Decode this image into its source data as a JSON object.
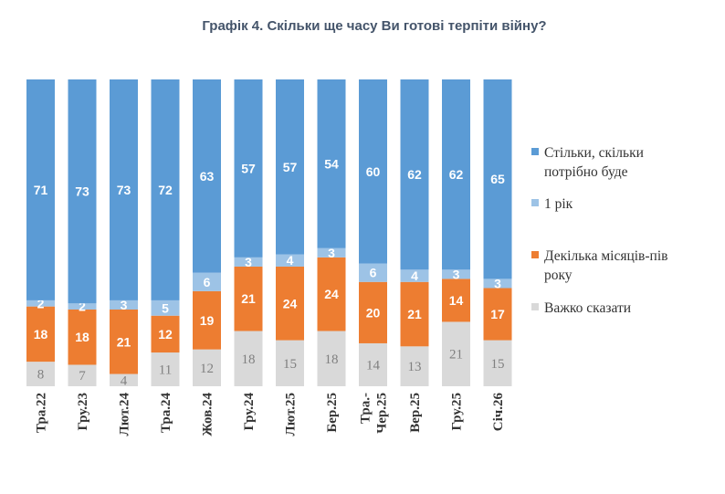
{
  "chart_data": {
    "type": "bar",
    "stacked": true,
    "title": "Графік 4. Скільки ще часу Ви готові терпіти війну?",
    "categories": [
      "Тра.22",
      "Гру.23",
      "Лют.24",
      "Тра.24",
      "Жов.24",
      "Гру.24",
      "Лют.25",
      "Бер.25",
      "Тра.-Чер.25",
      "Вер.25",
      "Гру.25",
      "Січ.26"
    ],
    "series": [
      {
        "name": "Важко сказати",
        "color": "#d9d9d9",
        "label_color": "#808080",
        "values": [
          8,
          7,
          4,
          11,
          12,
          18,
          15,
          18,
          14,
          13,
          21,
          15
        ]
      },
      {
        "name": "Декілька місяців-пів року",
        "color": "#ed7d31",
        "label_color": "#ffffff",
        "values": [
          18,
          18,
          21,
          12,
          19,
          21,
          24,
          24,
          20,
          21,
          14,
          17
        ]
      },
      {
        "name": "1 рік",
        "color": "#9dc3e6",
        "label_color": "#ffffff",
        "values": [
          2,
          2,
          3,
          5,
          6,
          3,
          4,
          3,
          6,
          4,
          3,
          3
        ]
      },
      {
        "name": "Стільки, скільки потрібно буде",
        "color": "#5b9bd5",
        "label_color": "#ffffff",
        "values": [
          71,
          73,
          73,
          72,
          63,
          57,
          57,
          54,
          60,
          62,
          62,
          65
        ]
      }
    ],
    "legend_order": [
      3,
      2,
      1,
      0
    ],
    "ylim": [
      0,
      100
    ],
    "grid": false,
    "legend_position": "right"
  }
}
